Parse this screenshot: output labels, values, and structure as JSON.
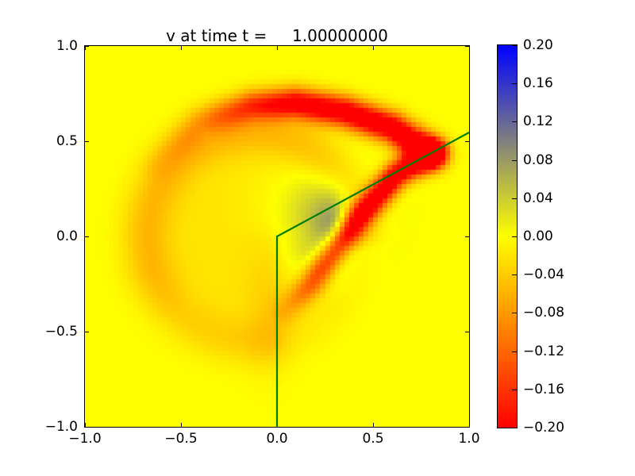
{
  "chart_data": {
    "type": "heatmap",
    "title": "v at time t =     1.00000000",
    "x_range": [
      -1,
      1
    ],
    "y_range": [
      -1,
      1
    ],
    "grid_resolution": [
      80,
      80
    ],
    "grid_on": false,
    "background_value": 0.0,
    "xticks": {
      "values": [
        -1.0,
        -0.5,
        0.0,
        0.5,
        1.0
      ],
      "labels": [
        "−1.0",
        "−0.5",
        "0.0",
        "0.5",
        "1.0"
      ]
    },
    "yticks": {
      "values": [
        1.0,
        0.5,
        0.0,
        -0.5,
        -1.0
      ],
      "labels": [
        "1.0",
        "0.5",
        "0.0",
        "−0.5",
        "−1.0"
      ]
    },
    "colorbar": {
      "vmin": -0.2,
      "vmax": 0.2,
      "position": "right",
      "tick_values": [
        0.2,
        0.16,
        0.12,
        0.08,
        0.04,
        0.0,
        -0.04,
        -0.08,
        -0.12,
        -0.16,
        -0.2
      ],
      "tick_labels": [
        "0.20",
        "0.16",
        "0.12",
        "0.08",
        "0.04",
        "0.00",
        "−0.04",
        "−0.08",
        "−0.12",
        "−0.16",
        "−0.20"
      ]
    },
    "colormap_stops": [
      [
        -0.2,
        [
          255,
          0,
          0
        ]
      ],
      [
        0.0,
        [
          255,
          255,
          0
        ]
      ],
      [
        0.2,
        [
          0,
          0,
          255
        ]
      ]
    ],
    "overlay_line": {
      "name": "wedge-boundary",
      "color": "#007d00",
      "width": 2.2,
      "points": [
        [
          0.0,
          -1.0
        ],
        [
          0.0,
          0.0
        ],
        [
          1.0,
          0.546
        ]
      ]
    },
    "field_features": [
      {
        "type": "disc",
        "cx": -0.13,
        "cy": 0.0,
        "r": 0.5,
        "soft": 0.08,
        "amp": -0.022,
        "shadow": true
      },
      {
        "type": "ring",
        "cx": -0.13,
        "cy": 0.0,
        "r": 0.55,
        "sigma": 0.09,
        "amp": -0.05,
        "arc_start": 0,
        "arc_end": 200,
        "feather": 30,
        "floor": 0.6,
        "shadow": true
      },
      {
        "type": "band",
        "sigma": 0.055,
        "shadow": false,
        "pts": [
          [
            -0.62,
            0.38,
            -0.02
          ],
          [
            -0.4,
            0.6,
            -0.06
          ],
          [
            -0.13,
            0.685,
            -0.16
          ],
          [
            0.1,
            0.7,
            -0.23
          ],
          [
            0.35,
            0.655,
            -0.25
          ],
          [
            0.6,
            0.57,
            -0.26
          ],
          [
            0.8,
            0.437,
            -0.28
          ]
        ]
      },
      {
        "type": "band",
        "sigma": 0.047,
        "shadow": false,
        "pts": [
          [
            0.8,
            0.437,
            -0.27
          ],
          [
            0.62,
            0.32,
            -0.25
          ],
          [
            0.44,
            0.115,
            -0.24
          ],
          [
            0.3,
            -0.075,
            -0.21
          ],
          [
            0.175,
            -0.255,
            -0.13
          ],
          [
            0.05,
            -0.385,
            -0.04
          ]
        ]
      },
      {
        "type": "band",
        "sigma": 0.09,
        "shadow": false,
        "pts": [
          [
            -0.05,
            -0.08,
            -0.012
          ],
          [
            -0.04,
            -0.35,
            -0.02
          ],
          [
            -0.04,
            -0.62,
            -0.014
          ],
          [
            -0.04,
            -0.78,
            -0.004
          ]
        ]
      },
      {
        "type": "blob",
        "cx": 0.2,
        "cy": 0.13,
        "rx": 0.22,
        "ry": 0.22,
        "amp": 0.03,
        "shadow": false
      },
      {
        "type": "blob",
        "cx": 0.26,
        "cy": 0.08,
        "rx": 0.13,
        "ry": 0.17,
        "amp": 0.045,
        "shadow": false
      },
      {
        "type": "blob",
        "cx": 0.3,
        "cy": 0.03,
        "rx": 0.06,
        "ry": 0.14,
        "amp": 0.05,
        "shadow": false
      }
    ],
    "shadow_region": {
      "description": "attenuation right of vertical wall x=0 for y<0",
      "floor": 0.45,
      "decay_x": 0.05,
      "blend_y": 0.08
    }
  },
  "layout_colors": {
    "figure_background": "#ffffff",
    "frame": "#000000",
    "text": "#000000"
  }
}
